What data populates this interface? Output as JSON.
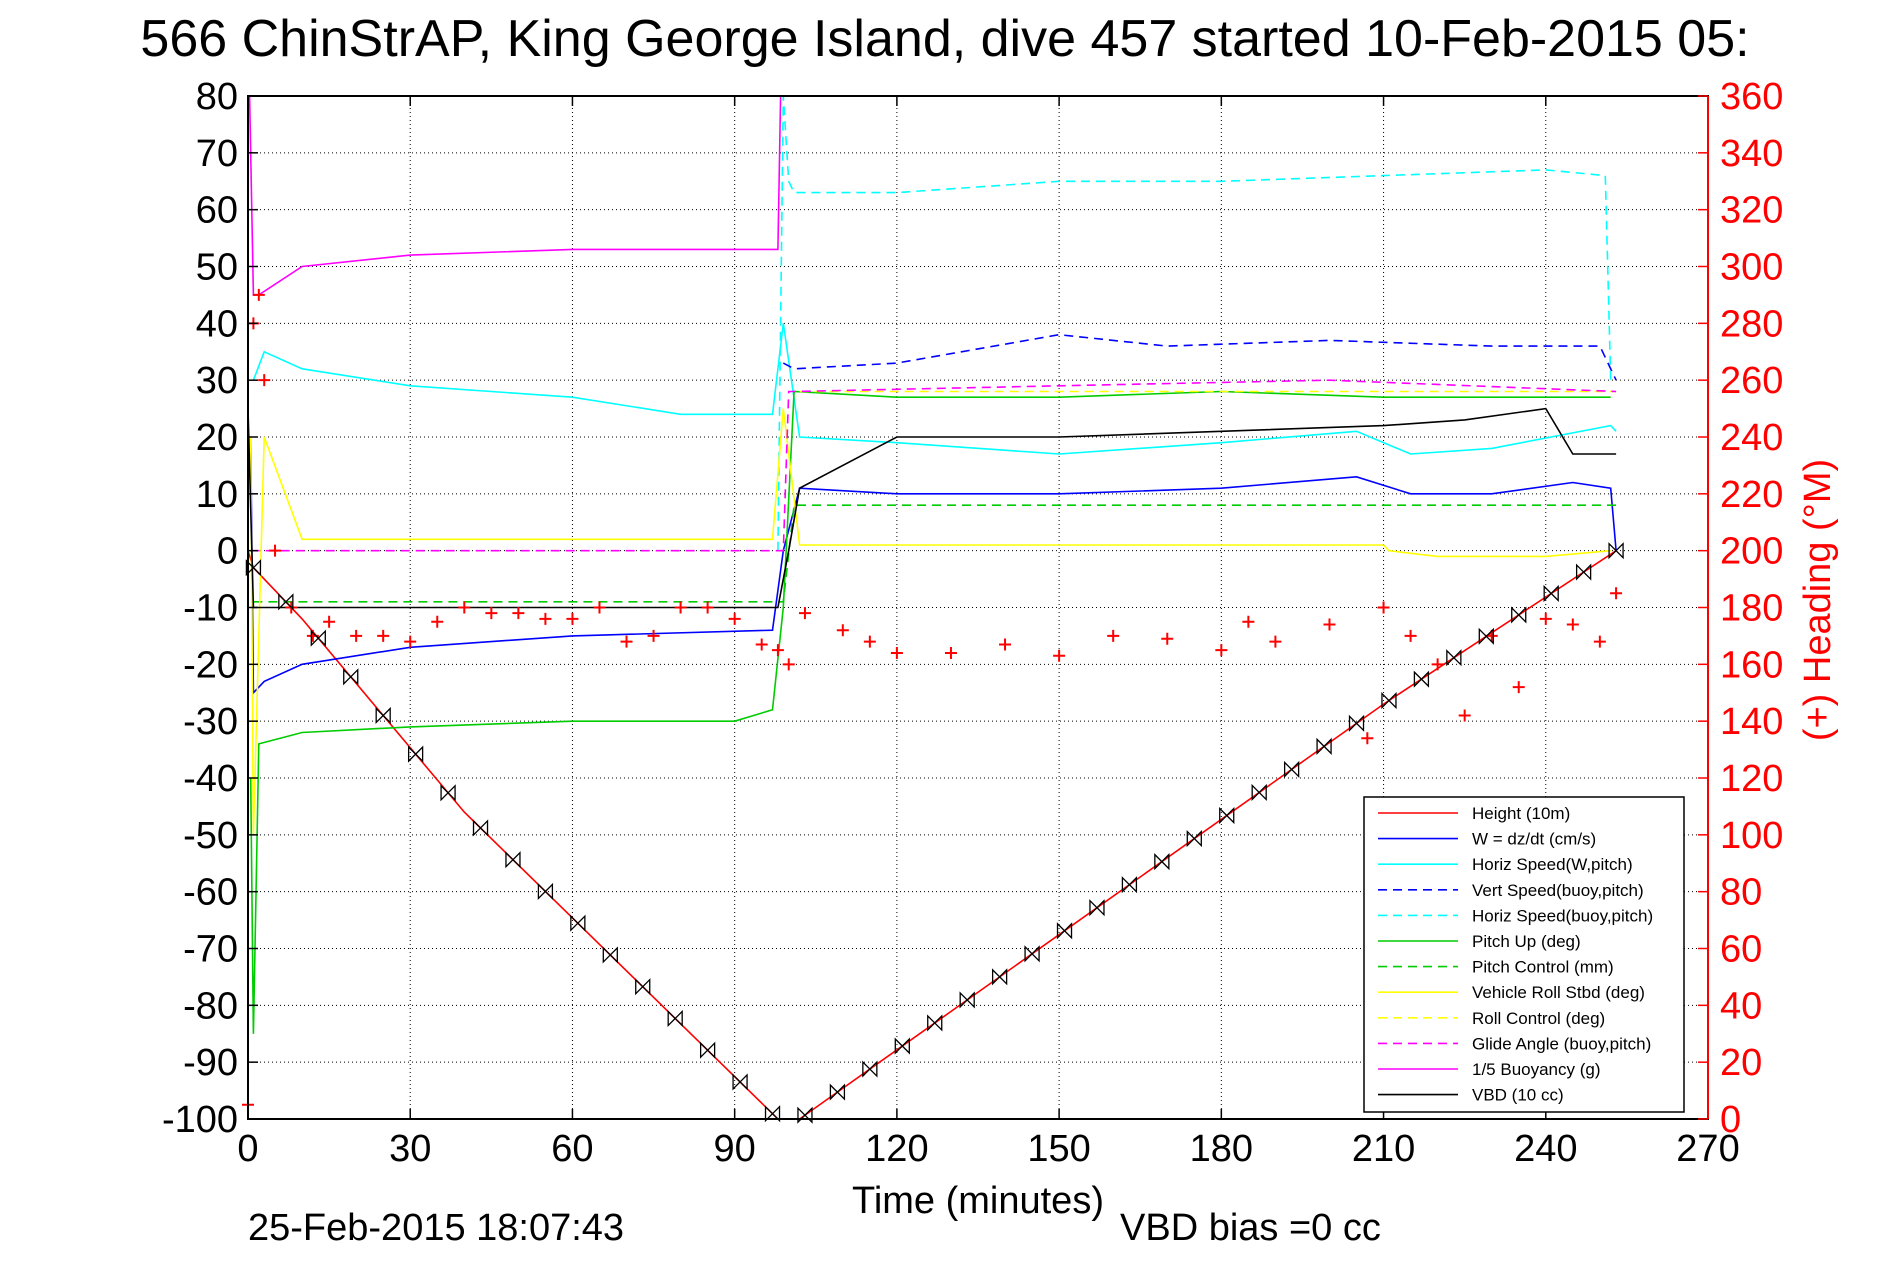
{
  "chart_data": {
    "type": "line",
    "title": "566 ChinStrAP, King George Island, dive 457 started 10-Feb-2015 05:",
    "xlabel": "Time (minutes)",
    "ylabel": "",
    "y2label": "(+) Heading (°M)",
    "xlim": [
      0,
      270
    ],
    "ylim": [
      -100,
      80
    ],
    "y2lim": [
      0,
      360
    ],
    "xticks": [
      "0",
      "30",
      "60",
      "90",
      "120",
      "150",
      "180",
      "210",
      "240",
      "270"
    ],
    "yticks": [
      "80",
      "70",
      "60",
      "50",
      "40",
      "30",
      "20",
      "10",
      "0",
      "-10",
      "-20",
      "-30",
      "-40",
      "-50",
      "-60",
      "-70",
      "-80",
      "-90",
      "-100"
    ],
    "y2ticks": [
      "360",
      "340",
      "320",
      "300",
      "280",
      "260",
      "240",
      "220",
      "200",
      "180",
      "160",
      "140",
      "120",
      "100",
      "80",
      "60",
      "40",
      "20",
      "0"
    ],
    "grid": true,
    "legend_position": "bottom-right",
    "footer_left": "25-Feb-2015 18:07:43",
    "footer_right": "VBD bias =0 cc",
    "series": [
      {
        "name": "Height (10m)",
        "color": "#ff0000",
        "dash": "solid",
        "x": [
          0,
          1,
          10,
          40,
          98,
          102,
          210,
          253
        ],
        "y": [
          0,
          -3,
          -12,
          -46,
          -100,
          -100,
          -27,
          0
        ]
      },
      {
        "name": "W = dz/dt (cm/s)",
        "color": "#0000ff",
        "dash": "solid",
        "x": [
          0.5,
          1,
          3,
          10,
          30,
          60,
          97,
          99,
          102,
          120,
          150,
          180,
          205,
          215,
          230,
          245,
          252,
          253
        ],
        "y": [
          20,
          -25,
          -23,
          -20,
          -17,
          -15,
          -14,
          0,
          11,
          10,
          10,
          11,
          13,
          10,
          10,
          12,
          11,
          0
        ]
      },
      {
        "name": "Horiz Speed(W,pitch)",
        "color": "#00ffff",
        "dash": "solid",
        "x": [
          1,
          3,
          10,
          30,
          60,
          80,
          97,
          99,
          102,
          120,
          150,
          180,
          205,
          215,
          230,
          252,
          253
        ],
        "y": [
          30,
          35,
          32,
          29,
          27,
          24,
          24,
          40,
          20,
          19,
          17,
          19,
          21,
          17,
          18,
          22,
          21
        ]
      },
      {
        "name": "Vert Speed(buoy,pitch)",
        "color": "#0000ff",
        "dash": "dashed",
        "x": [
          99,
          101,
          120,
          150,
          170,
          200,
          230,
          250,
          253
        ],
        "y": [
          33,
          32,
          33,
          38,
          36,
          37,
          36,
          36,
          30
        ]
      },
      {
        "name": "Horiz Speed(buoy,pitch)",
        "color": "#00ffff",
        "dash": "dashed",
        "x": [
          98,
          99,
          100,
          101,
          120,
          150,
          180,
          210,
          240,
          251,
          252
        ],
        "y": [
          0,
          80,
          65,
          63,
          63,
          65,
          65,
          66,
          67,
          66,
          30
        ]
      },
      {
        "name": "Pitch Up (deg)",
        "color": "#00cc00",
        "dash": "solid",
        "x": [
          0.5,
          1,
          2,
          10,
          30,
          60,
          90,
          97,
          99,
          101,
          120,
          150,
          180,
          210,
          240,
          252
        ],
        "y": [
          -40,
          -85,
          -34,
          -32,
          -31,
          -30,
          -30,
          -28,
          -10,
          28,
          27,
          27,
          28,
          27,
          27,
          27
        ]
      },
      {
        "name": "Pitch Control (mm)",
        "color": "#00cc00",
        "dash": "dashed",
        "x": [
          1,
          97,
          99,
          101,
          253
        ],
        "y": [
          -9,
          -9,
          -9,
          8,
          8
        ]
      },
      {
        "name": "Vehicle Roll Stbd (deg)",
        "color": "#ffff00",
        "dash": "solid",
        "x": [
          0.5,
          1,
          3,
          10,
          30,
          60,
          97,
          99,
          102,
          150,
          200,
          210,
          211,
          220,
          240,
          252
        ],
        "y": [
          20,
          -50,
          20,
          2,
          2,
          2,
          2,
          25,
          1,
          1,
          1,
          1,
          0,
          -1,
          -1,
          0
        ]
      },
      {
        "name": "Roll Control (deg)",
        "color": "#ffff00",
        "dash": "dashed",
        "x": [
          102,
          253
        ],
        "y": [
          28,
          28
        ]
      },
      {
        "name": "Glide Angle (buoy,pitch)",
        "color": "#ff00ff",
        "dash": "dashed",
        "x": [
          0.5,
          1,
          99,
          100,
          101,
          150,
          200,
          253
        ],
        "y": [
          0,
          0,
          0,
          28,
          28,
          29,
          30,
          28
        ]
      },
      {
        "name": "1/5 Buoyancy (g)",
        "color": "#ff00ff",
        "dash": "solid",
        "x": [
          0.3,
          1,
          2,
          10,
          30,
          60,
          98,
          98.5,
          99
        ],
        "y": [
          80,
          45,
          45,
          50,
          52,
          53,
          53,
          80,
          80
        ]
      },
      {
        "name": "VBD (10 cc)",
        "color": "#000000",
        "dash": "solid",
        "x": [
          0,
          1,
          10,
          98,
          100,
          102,
          120,
          150,
          180,
          210,
          225,
          240,
          245,
          253
        ],
        "y": [
          25,
          -10,
          -10,
          -10,
          0,
          11,
          20,
          20,
          21,
          22,
          23,
          25,
          17,
          17
        ]
      },
      {
        "name": "Heading",
        "axis": "right",
        "marker": "+",
        "color": "#ff0000",
        "x": [
          0,
          1,
          2,
          3,
          5,
          8,
          12,
          15,
          20,
          25,
          30,
          35,
          40,
          45,
          50,
          55,
          60,
          65,
          70,
          75,
          80,
          85,
          90,
          95,
          98,
          100,
          103,
          110,
          115,
          120,
          130,
          140,
          150,
          160,
          170,
          180,
          185,
          190,
          200,
          207,
          210,
          215,
          220,
          225,
          230,
          235,
          240,
          245,
          250,
          253
        ],
        "y": [
          5,
          280,
          290,
          260,
          200,
          180,
          170,
          175,
          170,
          170,
          168,
          175,
          180,
          178,
          178,
          176,
          176,
          180,
          168,
          170,
          180,
          180,
          176,
          167,
          165,
          160,
          178,
          172,
          168,
          164,
          164,
          167,
          163,
          170,
          169,
          165,
          175,
          168,
          174,
          134,
          180,
          170,
          160,
          142,
          170,
          152,
          176,
          174,
          168,
          185
        ]
      }
    ]
  }
}
